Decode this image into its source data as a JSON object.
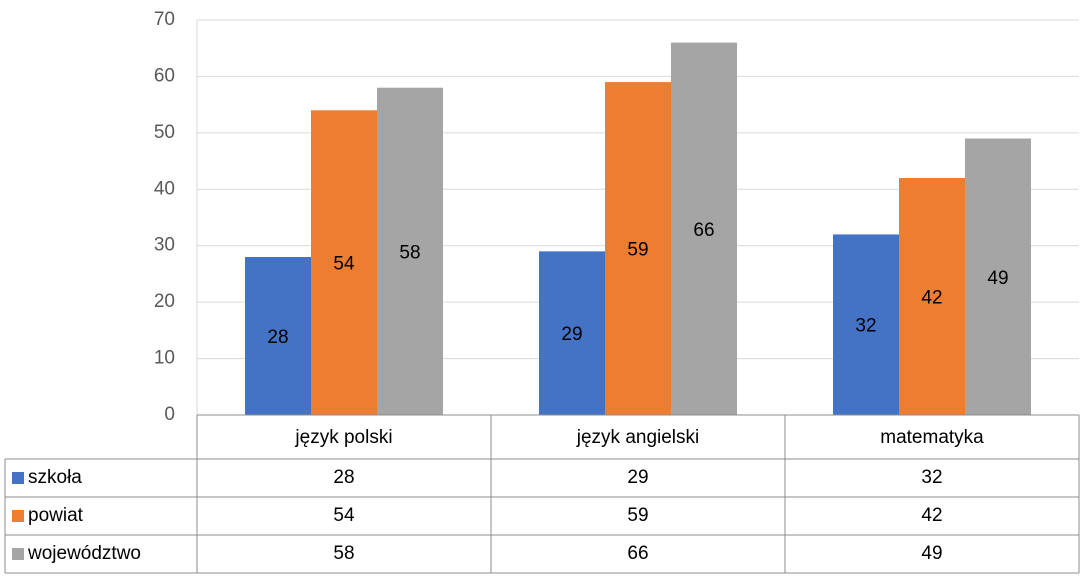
{
  "chart_data": {
    "type": "bar",
    "categories": [
      "język polski",
      "język angielski",
      "matematyka"
    ],
    "series": [
      {
        "name": "szkoła",
        "color": "#4472c4",
        "values": [
          28,
          29,
          32
        ]
      },
      {
        "name": "powiat",
        "color": "#ed7d31",
        "values": [
          54,
          59,
          42
        ]
      },
      {
        "name": "województwo",
        "color": "#a5a5a5",
        "values": [
          58,
          66,
          49
        ]
      }
    ],
    "ylim": [
      0,
      70
    ],
    "yticks": [
      0,
      10,
      20,
      30,
      40,
      50,
      60,
      70
    ],
    "grid": true,
    "data_table": true,
    "data_labels": true
  }
}
